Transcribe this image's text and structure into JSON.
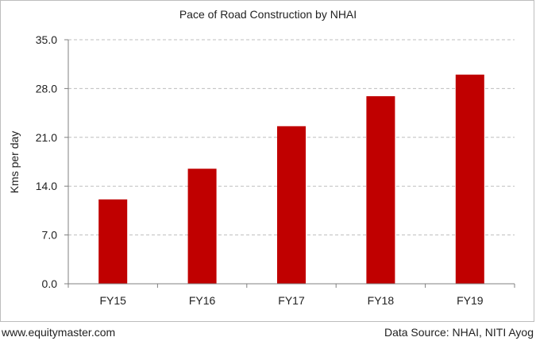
{
  "footer": {
    "website": "www.equitymaster.com",
    "source": "Data Source: NHAI, NITI Ayog"
  },
  "chart_data": {
    "type": "bar",
    "title": "Pace of  Road Construction by NHAI",
    "xlabel": "",
    "ylabel": "Kms per day",
    "categories": [
      "FY15",
      "FY16",
      "FY17",
      "FY18",
      "FY19"
    ],
    "values": [
      12.1,
      16.5,
      22.6,
      26.9,
      30.0
    ],
    "ylim": [
      0,
      35
    ],
    "yticks": [
      "0.0",
      "7.0",
      "14.0",
      "21.0",
      "28.0",
      "35.0"
    ],
    "bar_color": "#c00000",
    "grid": "horizontal dashed",
    "legend": "none"
  }
}
